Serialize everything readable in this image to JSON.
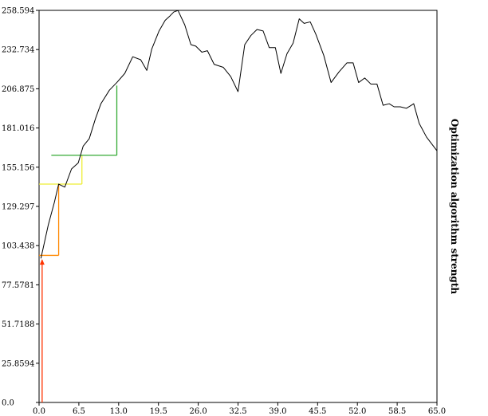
{
  "chart_data": {
    "type": "line",
    "title": "",
    "xlabel": "",
    "ylabel": "Optimization algorithm strength",
    "xlim": [
      0.0,
      65.0
    ],
    "ylim": [
      0.0,
      258.594
    ],
    "x_ticks": [
      "0.0",
      "6.5",
      "13.0",
      "19.5",
      "26.0",
      "32.5",
      "39.0",
      "45.5",
      "52.0",
      "58.5",
      "65.0"
    ],
    "y_ticks": [
      "0.0",
      "25.8594",
      "51.7188",
      "77.5781",
      "103.438",
      "129.297",
      "155.156",
      "181.016",
      "206.875",
      "232.734",
      "258.594"
    ],
    "grid": false,
    "legend": "none",
    "series": [
      {
        "color": "#000000",
        "x": [
          0.3,
          1.5,
          2.5,
          3.2,
          4.2,
          5.3,
          6.4,
          7.2,
          8.2,
          9.2,
          10.1,
          11.5,
          12.7,
          14.0,
          15.3,
          16.6,
          17.6,
          18.4,
          19.6,
          20.6,
          21.4,
          22.0,
          22.7,
          23.8,
          24.8,
          25.6,
          26.6,
          27.5,
          28.6,
          30.1,
          31.3,
          32.5,
          33.6,
          34.6,
          35.6,
          36.6,
          37.6,
          38.6,
          39.5,
          40.5,
          41.5,
          42.5,
          43.3,
          44.3,
          45.2,
          46.5,
          47.7,
          49.0,
          50.3,
          51.3,
          52.2,
          53.2,
          54.2,
          55.2,
          56.2,
          57.2,
          58.0,
          59.0,
          60.0,
          61.2,
          62.1,
          63.3,
          65.0
        ],
        "y": [
          95.0,
          117.0,
          132.0,
          144.0,
          142.0,
          154.0,
          158.0,
          169.0,
          174.0,
          187.0,
          197.0,
          206.0,
          211.0,
          217.0,
          228.0,
          226.0,
          219.0,
          233.0,
          245.0,
          252.0,
          255.0,
          257.5,
          258.5,
          249.0,
          236.0,
          235.0,
          231.0,
          232.0,
          223.0,
          221.0,
          215.0,
          205.0,
          236.0,
          242.0,
          246.0,
          245.0,
          234.0,
          234.0,
          217.0,
          230.0,
          237.0,
          253.0,
          250.0,
          251.0,
          243.0,
          229.0,
          211.0,
          218.0,
          224.0,
          224.0,
          211.0,
          214.0,
          210.0,
          210.0,
          196.0,
          197.0,
          195.0,
          195.0,
          194.0,
          197.0,
          184.0,
          175.0,
          166.0
        ]
      }
    ],
    "annotations": [
      {
        "type": "vline",
        "color": "#ff3300",
        "x": 0.5,
        "y_from": 0.0,
        "y_to": 94.0
      },
      {
        "type": "hline",
        "color": "#ff8800",
        "x_from": 0.0,
        "x_to": 3.2,
        "y": 97.0
      },
      {
        "type": "vline",
        "color": "#ff8800",
        "x": 3.2,
        "y_from": 97.0,
        "y_to": 144.0
      },
      {
        "type": "hline",
        "color": "#eeee33",
        "x_from": 0.0,
        "x_to": 7.0,
        "y": 144.0
      },
      {
        "type": "vline",
        "color": "#eeee33",
        "x": 7.0,
        "y_from": 144.0,
        "y_to": 163.0
      },
      {
        "type": "hline",
        "color": "#33aa33",
        "x_from": 2.0,
        "x_to": 12.7,
        "y": 163.0
      },
      {
        "type": "vline",
        "color": "#33aa33",
        "x": 12.7,
        "y_from": 163.0,
        "y_to": 209.0
      }
    ]
  }
}
